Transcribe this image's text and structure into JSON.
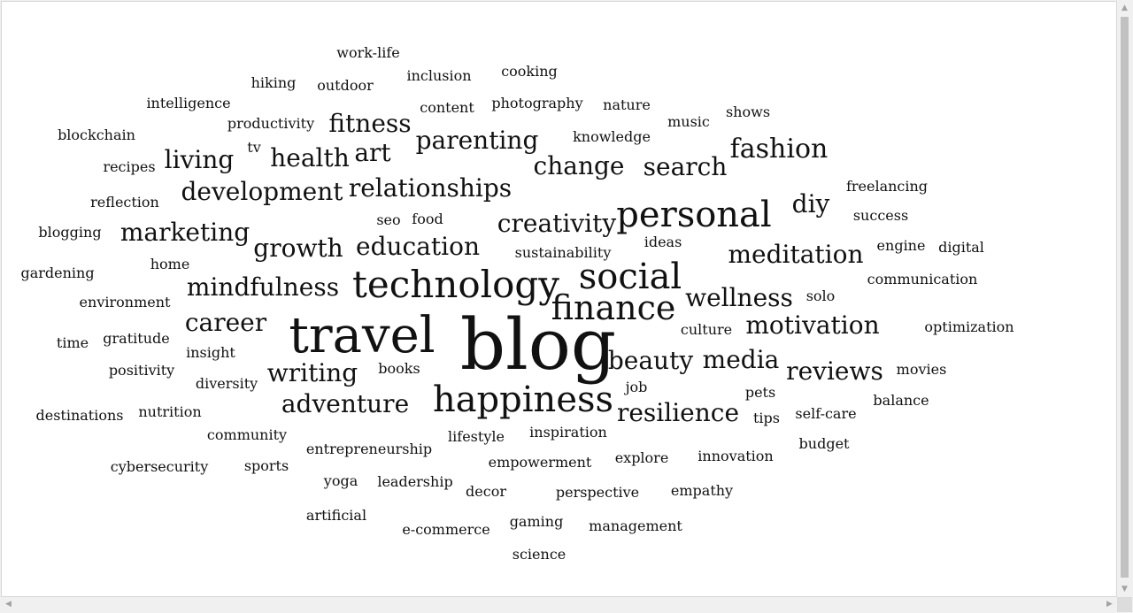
{
  "cloud": {
    "words": [
      {
        "text": "blog",
        "size": 80
      },
      {
        "text": "travel",
        "size": 56
      },
      {
        "text": "technology",
        "size": 42
      },
      {
        "text": "personal",
        "size": 40
      },
      {
        "text": "happiness",
        "size": 40
      },
      {
        "text": "social",
        "size": 40
      },
      {
        "text": "finance",
        "size": 38
      },
      {
        "text": "fashion",
        "size": 30
      },
      {
        "text": "development",
        "size": 28
      },
      {
        "text": "relationships",
        "size": 28
      },
      {
        "text": "creativity",
        "size": 28
      },
      {
        "text": "marketing",
        "size": 28
      },
      {
        "text": "education",
        "size": 28
      },
      {
        "text": "growth",
        "size": 28
      },
      {
        "text": "mindfulness",
        "size": 28
      },
      {
        "text": "meditation",
        "size": 28
      },
      {
        "text": "wellness",
        "size": 28
      },
      {
        "text": "motivation",
        "size": 28
      },
      {
        "text": "reviews",
        "size": 28
      },
      {
        "text": "adventure",
        "size": 28
      },
      {
        "text": "resilience",
        "size": 28
      },
      {
        "text": "parenting",
        "size": 28
      },
      {
        "text": "change",
        "size": 28
      },
      {
        "text": "search",
        "size": 28
      },
      {
        "text": "fitness",
        "size": 28
      },
      {
        "text": "health",
        "size": 28
      },
      {
        "text": "living",
        "size": 28
      },
      {
        "text": "art",
        "size": 28
      },
      {
        "text": "diy",
        "size": 28
      },
      {
        "text": "career",
        "size": 28
      },
      {
        "text": "writing",
        "size": 28
      },
      {
        "text": "beauty",
        "size": 28
      },
      {
        "text": "media",
        "size": 28
      },
      {
        "text": "work-life",
        "size": 16
      },
      {
        "text": "cooking",
        "size": 16
      },
      {
        "text": "inclusion",
        "size": 16
      },
      {
        "text": "hiking",
        "size": 16
      },
      {
        "text": "outdoor",
        "size": 16
      },
      {
        "text": "intelligence",
        "size": 16
      },
      {
        "text": "content",
        "size": 16
      },
      {
        "text": "photography",
        "size": 16
      },
      {
        "text": "nature",
        "size": 16
      },
      {
        "text": "shows",
        "size": 16
      },
      {
        "text": "music",
        "size": 16
      },
      {
        "text": "productivity",
        "size": 16
      },
      {
        "text": "knowledge",
        "size": 16
      },
      {
        "text": "blockchain",
        "size": 16
      },
      {
        "text": "tv",
        "size": 16
      },
      {
        "text": "recipes",
        "size": 16
      },
      {
        "text": "freelancing",
        "size": 16
      },
      {
        "text": "reflection",
        "size": 16
      },
      {
        "text": "success",
        "size": 16
      },
      {
        "text": "seo",
        "size": 16
      },
      {
        "text": "food",
        "size": 16
      },
      {
        "text": "blogging",
        "size": 16
      },
      {
        "text": "ideas",
        "size": 16
      },
      {
        "text": "engine",
        "size": 16
      },
      {
        "text": "digital",
        "size": 16
      },
      {
        "text": "sustainability",
        "size": 16
      },
      {
        "text": "gardening",
        "size": 16
      },
      {
        "text": "home",
        "size": 16
      },
      {
        "text": "communication",
        "size": 16
      },
      {
        "text": "environment",
        "size": 16
      },
      {
        "text": "solo",
        "size": 16
      },
      {
        "text": "optimization",
        "size": 16
      },
      {
        "text": "culture",
        "size": 16
      },
      {
        "text": "time",
        "size": 16
      },
      {
        "text": "gratitude",
        "size": 16
      },
      {
        "text": "insight",
        "size": 16
      },
      {
        "text": "positivity",
        "size": 16
      },
      {
        "text": "books",
        "size": 16
      },
      {
        "text": "movies",
        "size": 16
      },
      {
        "text": "diversity",
        "size": 16
      },
      {
        "text": "job",
        "size": 16
      },
      {
        "text": "pets",
        "size": 16
      },
      {
        "text": "balance",
        "size": 16
      },
      {
        "text": "destinations",
        "size": 16
      },
      {
        "text": "nutrition",
        "size": 16
      },
      {
        "text": "tips",
        "size": 16
      },
      {
        "text": "self-care",
        "size": 16
      },
      {
        "text": "community",
        "size": 16
      },
      {
        "text": "lifestyle",
        "size": 16
      },
      {
        "text": "inspiration",
        "size": 16
      },
      {
        "text": "budget",
        "size": 16
      },
      {
        "text": "entrepreneurship",
        "size": 16
      },
      {
        "text": "cybersecurity",
        "size": 16
      },
      {
        "text": "sports",
        "size": 16
      },
      {
        "text": "empowerment",
        "size": 16
      },
      {
        "text": "explore",
        "size": 16
      },
      {
        "text": "innovation",
        "size": 16
      },
      {
        "text": "yoga",
        "size": 16
      },
      {
        "text": "leadership",
        "size": 16
      },
      {
        "text": "decor",
        "size": 16
      },
      {
        "text": "perspective",
        "size": 16
      },
      {
        "text": "empathy",
        "size": 16
      },
      {
        "text": "artificial",
        "size": 16
      },
      {
        "text": "gaming",
        "size": 16
      },
      {
        "text": "e-commerce",
        "size": 16
      },
      {
        "text": "management",
        "size": 16
      },
      {
        "text": "science",
        "size": 16
      }
    ]
  },
  "colors": {
    "text": "#111111",
    "background": "#ffffff",
    "scrollbar_thumb": "#c1c1c1"
  },
  "scrollbar": {
    "up_arrow_icon": "▲",
    "down_arrow_icon": "▼",
    "left_arrow_icon": "◀",
    "right_arrow_icon": "▶"
  }
}
